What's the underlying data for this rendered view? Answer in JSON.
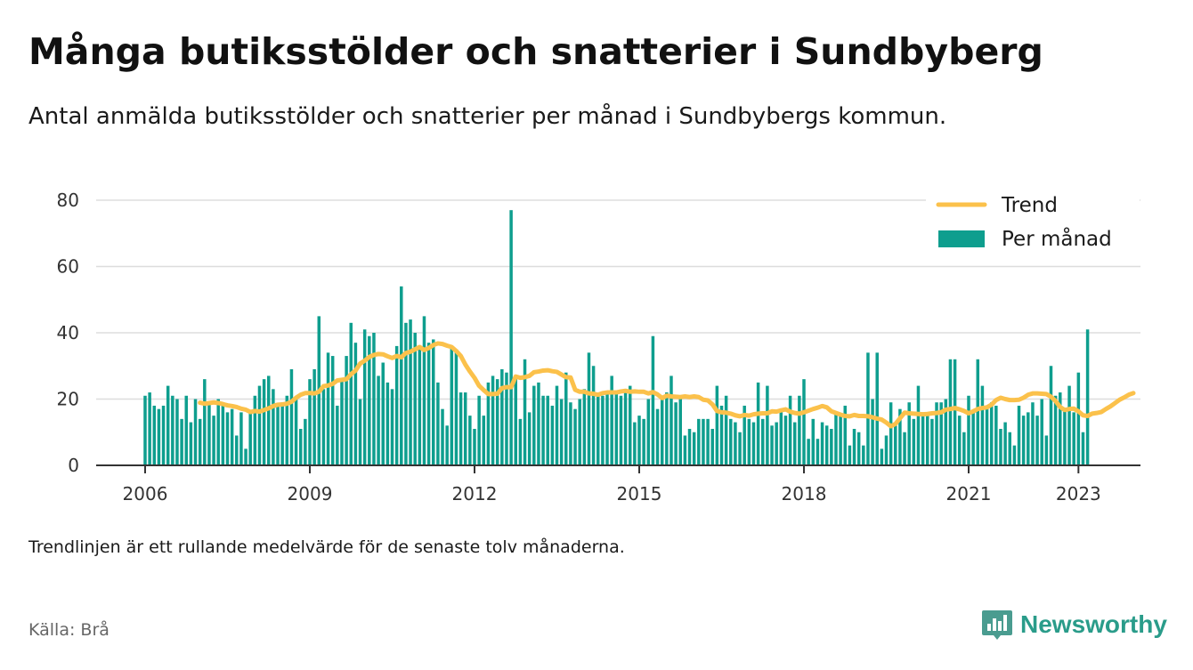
{
  "header": {
    "title": "Många butiksstölder och snatterier i Sundbyberg",
    "subtitle": "Antal anmälda butiksstölder och snatterier per månad i Sundbybergs kommun."
  },
  "footer": {
    "note": "Trendlinjen är ett rullande medelvärde för de senaste tolv månaderna.",
    "source": "Källa: Brå",
    "brand": "Newsworthy"
  },
  "icons": {
    "logo": "newsworthy-logo-icon"
  },
  "colors": {
    "bars": "#0e9e8e",
    "trend": "#fbc14b",
    "grid": "#dddddd",
    "axis": "#333333",
    "brand": "#2a9c8a"
  },
  "chart_data": {
    "type": "bar",
    "title": "Många butiksstölder och snatterier i Sundbyberg",
    "subtitle": "Antal anmälda butiksstölder och snatterier per månad i Sundbybergs kommun.",
    "xlabel": "",
    "ylabel": "",
    "x_start": "2006-01",
    "x_end": "2023-04",
    "ylim": [
      0,
      80
    ],
    "yticks": [
      0,
      20,
      40,
      60,
      80
    ],
    "xticks": [
      "2006",
      "2009",
      "2012",
      "2015",
      "2018",
      "2021",
      "2023"
    ],
    "grid": true,
    "legend_position": "top-right",
    "series": [
      {
        "name": "Per månad",
        "type": "bar",
        "values": [
          21,
          22,
          18,
          17,
          18,
          24,
          21,
          20,
          14,
          21,
          13,
          20,
          14,
          26,
          19,
          15,
          20,
          19,
          16,
          17,
          9,
          16,
          5,
          16,
          21,
          24,
          26,
          27,
          23,
          18,
          19,
          21,
          29,
          20,
          11,
          14,
          26,
          29,
          45,
          23,
          34,
          33,
          18,
          26,
          33,
          43,
          37,
          20,
          41,
          39,
          40,
          27,
          31,
          25,
          23,
          36,
          54,
          43,
          44,
          40,
          36,
          45,
          37,
          38,
          25,
          17,
          12,
          36,
          35,
          22,
          22,
          15,
          11,
          21,
          15,
          25,
          27,
          26,
          29,
          28,
          77,
          27,
          14,
          32,
          16,
          24,
          25,
          21,
          21,
          18,
          24,
          20,
          28,
          19,
          17,
          20,
          23,
          34,
          30,
          21,
          21,
          22,
          27,
          22,
          21,
          23,
          24,
          13,
          15,
          14,
          20,
          39,
          17,
          20,
          22,
          27,
          19,
          20,
          9,
          11,
          10,
          14,
          14,
          14,
          11,
          24,
          18,
          21,
          14,
          13,
          10,
          18,
          14,
          13,
          25,
          14,
          24,
          12,
          13,
          16,
          15,
          21,
          13,
          21,
          26,
          8,
          14,
          8,
          13,
          12,
          11,
          16,
          15,
          18,
          6,
          11,
          10,
          6,
          34,
          20,
          34,
          5,
          9,
          19,
          12,
          17,
          10,
          19,
          14,
          24,
          16,
          15,
          14,
          19,
          19,
          20,
          32,
          32,
          15,
          10,
          21,
          16,
          32,
          24,
          18,
          19,
          18,
          11,
          13,
          10,
          6,
          18,
          15,
          16,
          19,
          15,
          20,
          9,
          30,
          21,
          22,
          17,
          24,
          16,
          28,
          10,
          41
        ]
      },
      {
        "name": "Trend",
        "type": "line",
        "start_index": 12,
        "values": [
          18.9,
          18.6,
          18.8,
          19.0,
          18.8,
          18.5,
          18.1,
          17.9,
          17.6,
          17.1,
          16.8,
          16.1,
          16.4,
          16.2,
          16.7,
          17.2,
          17.9,
          18.3,
          18.4,
          18.6,
          19.2,
          20.4,
          21.3,
          21.8,
          21.8,
          21.7,
          22.2,
          23.9,
          24.1,
          24.6,
          25.6,
          25.8,
          26.0,
          27.5,
          28.6,
          30.7,
          31.6,
          32.7,
          33.3,
          33.6,
          33.5,
          32.9,
          32.4,
          33.0,
          32.6,
          33.9,
          34.3,
          35.0,
          35.7,
          34.8,
          35.4,
          36.3,
          36.8,
          36.6,
          36.1,
          35.7,
          34.5,
          33.0,
          30.4,
          28.3,
          26.4,
          24.0,
          22.7,
          21.5,
          21.5,
          21.6,
          23.3,
          23.6,
          23.6,
          26.8,
          26.4,
          26.6,
          27.0,
          28.1,
          28.3,
          28.6,
          28.7,
          28.4,
          28.2,
          27.4,
          26.6,
          26.5,
          22.8,
          22.2,
          22.2,
          21.7,
          21.6,
          21.3,
          21.8,
          22.0,
          22.0,
          22.0,
          22.3,
          22.5,
          22.2,
          22.3,
          22.2,
          22.2,
          21.7,
          22.1,
          21.4,
          20.3,
          21.0,
          20.8,
          20.7,
          20.6,
          20.8,
          20.6,
          20.8,
          20.6,
          19.8,
          19.6,
          18.4,
          16.4,
          16.0,
          15.9,
          15.6,
          15.1,
          14.8,
          15.2,
          15.0,
          15.4,
          15.6,
          15.7,
          15.7,
          16.3,
          16.2,
          16.6,
          16.9,
          16.2,
          15.8,
          15.6,
          16.0,
          16.5,
          17.0,
          17.4,
          17.9,
          17.5,
          16.3,
          15.8,
          15.3,
          14.9,
          14.8,
          15.2,
          14.9,
          14.9,
          14.8,
          14.5,
          14.1,
          13.8,
          12.9,
          11.8,
          12.5,
          14.2,
          15.9,
          15.7,
          15.6,
          15.5,
          15.4,
          15.5,
          15.7,
          15.8,
          16.0,
          16.8,
          17.0,
          17.3,
          16.9,
          16.4,
          15.7,
          16.3,
          17.0,
          17.3,
          17.5,
          18.3,
          19.7,
          20.4,
          20.0,
          19.7,
          19.7,
          19.8,
          20.4,
          21.3,
          21.7,
          21.7,
          21.6,
          21.5,
          20.7,
          19.4,
          17.6,
          16.7,
          17.0,
          17.1,
          16.3,
          15.1,
          14.9,
          15.6,
          15.8,
          16.1,
          17.0,
          17.8,
          18.8,
          19.8,
          20.5,
          21.3,
          21.8
        ]
      }
    ]
  }
}
